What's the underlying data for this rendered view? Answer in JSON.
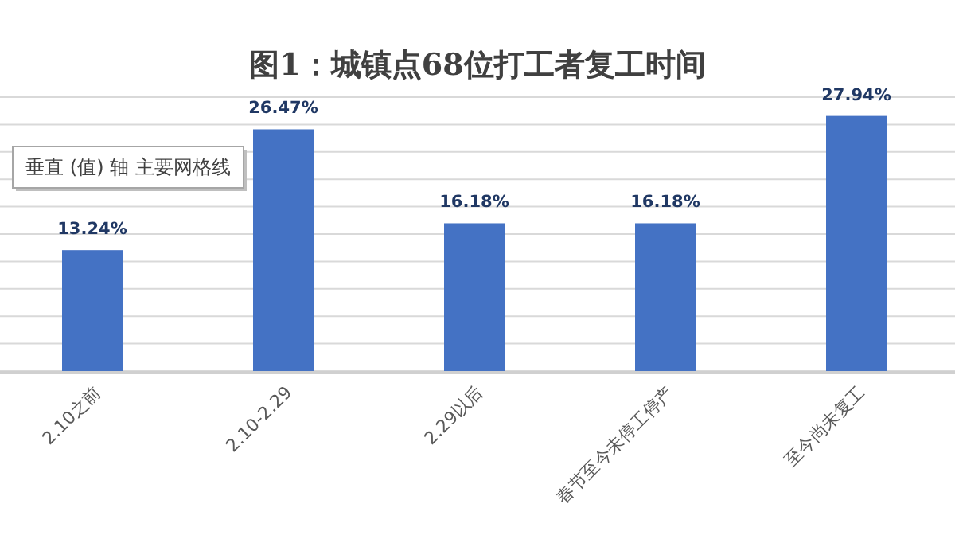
{
  "chart_data": {
    "type": "bar",
    "title": "图1：城镇点68位打工者复工时间",
    "categories": [
      "2.10之前",
      "2.10-2.29",
      "2.29以后",
      "春节至今未停工停产",
      "至今尚未复工"
    ],
    "values": [
      13.24,
      26.47,
      16.18,
      16.18,
      27.94
    ],
    "value_labels": [
      "13.24%",
      "26.47%",
      "16.18%",
      "16.18%",
      "27.94%"
    ],
    "color": "#4472c4",
    "ylim": [
      0,
      30
    ],
    "yticks": [
      {
        "value": 0,
        "label": null
      },
      {
        "value": 3,
        "label": null
      },
      {
        "value": 6,
        "label": null
      },
      {
        "value": 9,
        "label": null
      },
      {
        "value": 12,
        "label": null
      },
      {
        "value": 15,
        "label": null
      },
      {
        "value": 18,
        "label": null
      },
      {
        "value": 21,
        "label": null
      },
      {
        "value": 24,
        "label": null
      },
      {
        "value": 27,
        "label": null
      },
      {
        "value": 30,
        "label": null
      }
    ],
    "grid": "y",
    "tick_labels": "x",
    "annotations": [
      "垂直 (值) 轴 主要网格线"
    ]
  }
}
